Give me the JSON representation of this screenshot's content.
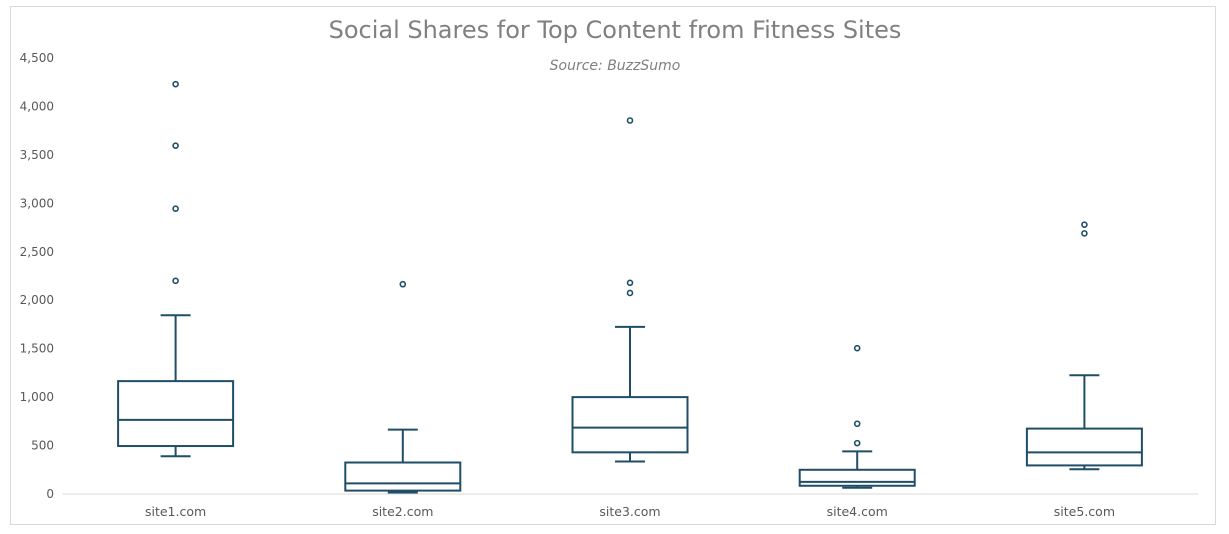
{
  "chart_data": {
    "type": "boxplot",
    "title": "Social Shares for Top Content from Fitness Sites",
    "subtitle": "Source: BuzzSumo",
    "xlabel": "",
    "ylabel": "",
    "ylim": [
      0,
      4500
    ],
    "yticks": [
      0,
      500,
      1000,
      1500,
      2000,
      2500,
      3000,
      3500,
      4000,
      4500
    ],
    "ytick_labels": [
      "0",
      "500",
      "1,000",
      "1,500",
      "2,000",
      "2,500",
      "3,000",
      "3,500",
      "4,000",
      "4,500"
    ],
    "grid": false,
    "legend": "none",
    "color": "#1f4e66",
    "categories": [
      "site1.com",
      "site2.com",
      "site3.com",
      "site4.com",
      "site5.com"
    ],
    "boxes": [
      {
        "category": "site1.com",
        "whisker_low": 390,
        "q1": 495,
        "median": 765,
        "q3": 1165,
        "whisker_high": 1845,
        "outliers": [
          2200,
          2945,
          3595,
          4230
        ]
      },
      {
        "category": "site2.com",
        "whisker_low": 15,
        "q1": 35,
        "median": 110,
        "q3": 325,
        "whisker_high": 665,
        "outliers": [
          2165
        ]
      },
      {
        "category": "site3.com",
        "whisker_low": 335,
        "q1": 430,
        "median": 685,
        "q3": 1000,
        "whisker_high": 1725,
        "outliers": [
          2075,
          2180,
          3855
        ]
      },
      {
        "category": "site4.com",
        "whisker_low": 65,
        "q1": 85,
        "median": 125,
        "q3": 250,
        "whisker_high": 440,
        "outliers": [
          525,
          725,
          1505
        ]
      },
      {
        "category": "site5.com",
        "whisker_low": 255,
        "q1": 295,
        "median": 430,
        "q3": 675,
        "whisker_high": 1225,
        "outliers": [
          2690,
          2780
        ]
      }
    ]
  }
}
